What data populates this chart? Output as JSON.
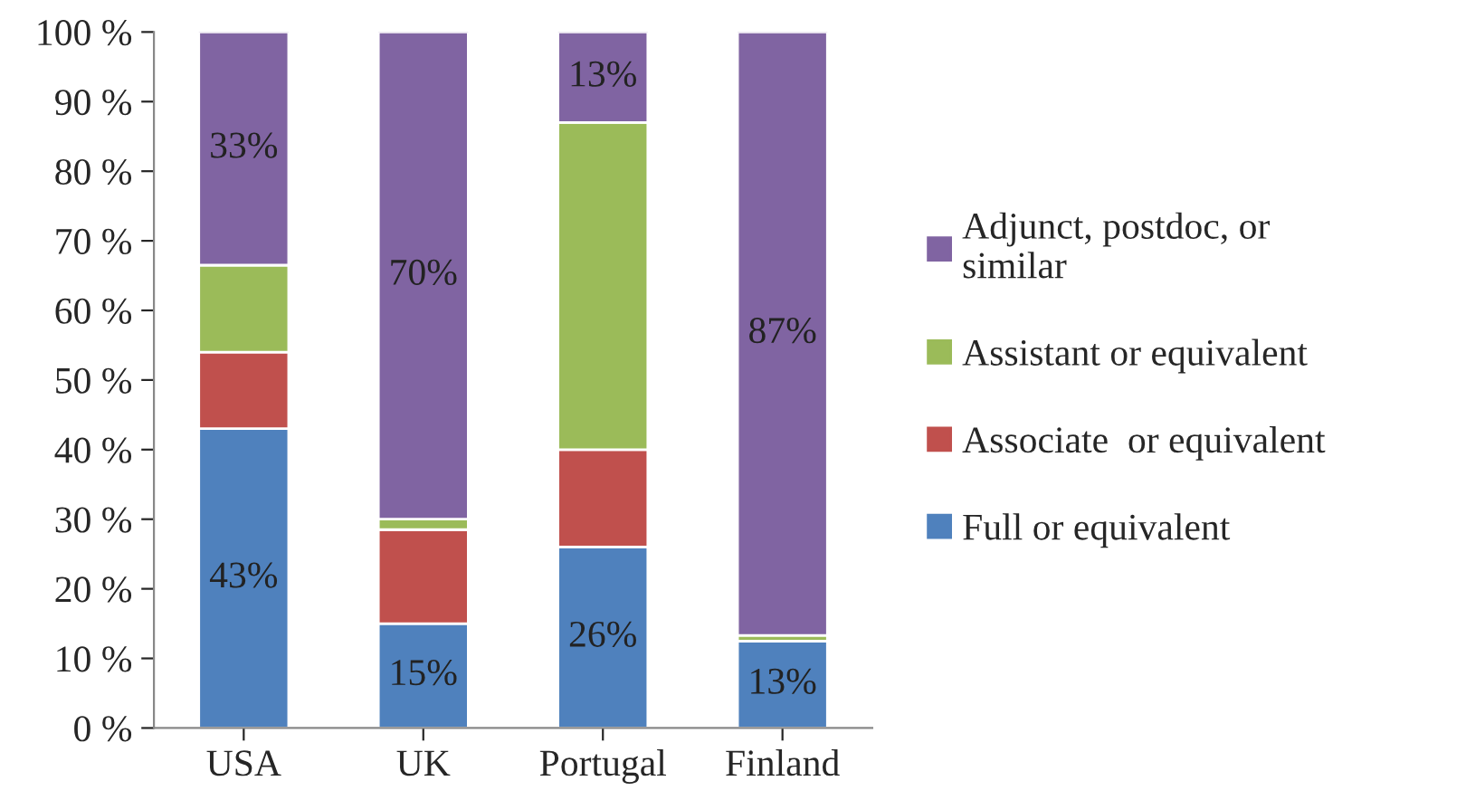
{
  "chart_data": {
    "type": "bar",
    "stacked": true,
    "categories": [
      "USA",
      "UK",
      "Portugal",
      "Finland"
    ],
    "series": [
      {
        "name": "Full or equivalent",
        "color": "#4f81bd",
        "values": [
          43,
          15,
          26,
          12.5
        ],
        "value_labels": [
          "43%",
          "15%",
          "26%",
          "13%"
        ]
      },
      {
        "name": "Associate  or equivalent",
        "color": "#c0504d",
        "values": [
          11,
          13.5,
          14,
          null
        ]
      },
      {
        "name": "Assistant or equivalent",
        "color": "#9bbb59",
        "values": [
          12.5,
          1.5,
          47,
          0.8
        ]
      },
      {
        "name": "Adjunct, postdoc, or\nsimilar",
        "color": "#8064a2",
        "values": [
          33.5,
          70,
          13,
          86.7
        ],
        "value_labels": [
          "33%",
          "70%",
          "13%",
          "87%"
        ]
      }
    ],
    "ylim": [
      0,
      100
    ],
    "yticks": [
      {
        "value": 0,
        "label": "0 %"
      },
      {
        "value": 10,
        "label": "10 %"
      },
      {
        "value": 20,
        "label": "20 %"
      },
      {
        "value": 30,
        "label": "30 %"
      },
      {
        "value": 40,
        "label": "40 %"
      },
      {
        "value": 50,
        "label": "50 %"
      },
      {
        "value": 60,
        "label": "60 %"
      },
      {
        "value": 70,
        "label": "70 %"
      },
      {
        "value": 80,
        "label": "80 %"
      },
      {
        "value": 90,
        "label": "90 %"
      },
      {
        "value": 100,
        "label": "100 %"
      }
    ],
    "grid": false,
    "legend": "right"
  }
}
